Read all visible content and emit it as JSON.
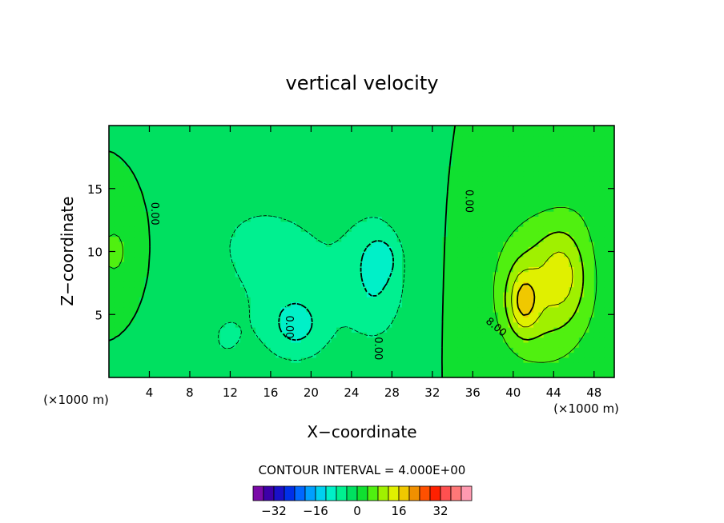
{
  "chart_data": {
    "type": "heatmap",
    "title": "vertical velocity",
    "xlabel": "X−coordinate",
    "ylabel": "Z−coordinate",
    "x_units": "(×1000 m)",
    "xlim": [
      0,
      50
    ],
    "ylim": [
      0,
      20
    ],
    "x_ticks": [
      4,
      8,
      12,
      16,
      20,
      24,
      28,
      32,
      36,
      40,
      44,
      48
    ],
    "y_ticks": [
      5,
      10,
      15
    ],
    "contour_labels": [
      {
        "text": "0.00",
        "x": 4.2,
        "y": 13
      },
      {
        "text": "0.00",
        "x": 35.3,
        "y": 14
      },
      {
        "text": "0.00",
        "x": 17.5,
        "y": 4
      },
      {
        "text": "0.00",
        "x": 26.3,
        "y": 2.3
      },
      {
        "text": "8.00",
        "x": 38.1,
        "y": 3.8
      }
    ],
    "contour_interval_text": "CONTOUR INTERVAL = 4.000E+00",
    "colorbar": {
      "colors": [
        "#7a0aa8",
        "#3d00a8",
        "#1a10c8",
        "#0030e8",
        "#0068ff",
        "#00a0ff",
        "#00d0f0",
        "#00f0c8",
        "#00f090",
        "#00e060",
        "#10e030",
        "#50f010",
        "#a0f000",
        "#e0f000",
        "#f0c800",
        "#f09000",
        "#ff5000",
        "#ff2000",
        "#ff5050",
        "#ff7878",
        "#ff9ab0"
      ],
      "tick_labels": [
        "−32",
        "−16",
        "0",
        "16",
        "32"
      ],
      "tick_values": [
        -32,
        -16,
        0,
        16,
        32
      ]
    },
    "field": {
      "background_value": 0,
      "features": [
        {
          "x": 18,
          "y": 8,
          "sx": 8,
          "sy": 7,
          "amp": -5
        },
        {
          "x": 14,
          "y": 11,
          "sx": 4,
          "sy": 3,
          "amp": -2
        },
        {
          "x": 26.5,
          "y": 8,
          "sx": 3,
          "sy": 5,
          "amp": -7
        },
        {
          "x": 18.5,
          "y": 4,
          "sx": 3,
          "sy": 2.5,
          "amp": -6
        },
        {
          "x": 11.5,
          "y": 3,
          "sx": 2,
          "sy": 2,
          "amp": -3
        },
        {
          "x": 27,
          "y": 9.5,
          "sx": 1.5,
          "sy": 1.5,
          "amp": -4
        },
        {
          "x": 43,
          "y": 7,
          "sx": 5,
          "sy": 6,
          "amp": 10
        },
        {
          "x": 45,
          "y": 8.5,
          "sx": 2.2,
          "sy": 3.5,
          "amp": 6
        },
        {
          "x": 41,
          "y": 6,
          "sx": 1.5,
          "sy": 2.5,
          "amp": 10
        },
        {
          "x": 49.5,
          "y": 16,
          "sx": 4,
          "sy": 4,
          "amp": 3
        },
        {
          "x": 0.5,
          "y": 10,
          "sx": 2,
          "sy": 3,
          "amp": 5
        }
      ]
    }
  }
}
